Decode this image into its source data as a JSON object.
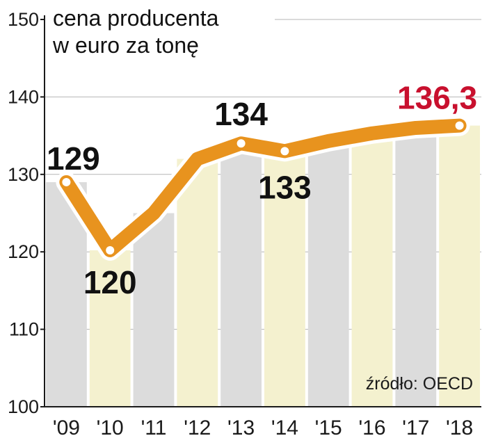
{
  "chart_data": {
    "type": "line",
    "title_lines": [
      "cena producenta",
      "w euro za tonę"
    ],
    "categories": [
      "'09",
      "'10",
      "'11",
      "'12",
      "'13",
      "'14",
      "'15",
      "'16",
      "'17",
      "'18"
    ],
    "values": [
      129,
      120.2,
      125,
      132,
      134,
      133,
      134.3,
      135.3,
      136,
      136.3
    ],
    "data_labels": [
      {
        "index": 0,
        "text": "129"
      },
      {
        "index": 1,
        "text": "120"
      },
      {
        "index": 4,
        "text": "134"
      },
      {
        "index": 5,
        "text": "133"
      },
      {
        "index": 9,
        "text": "136,3"
      }
    ],
    "y_ticks": [
      100,
      110,
      120,
      130,
      140,
      150
    ],
    "ylim": [
      100,
      150
    ],
    "grid": true,
    "source": "źródło: OECD",
    "colors": {
      "line": "#e8931e",
      "bar_gray": "#dcdcdc",
      "bar_cream": "#f4f1cf",
      "highlight": "#c8102e",
      "grid": "#b5b5b5"
    }
  }
}
